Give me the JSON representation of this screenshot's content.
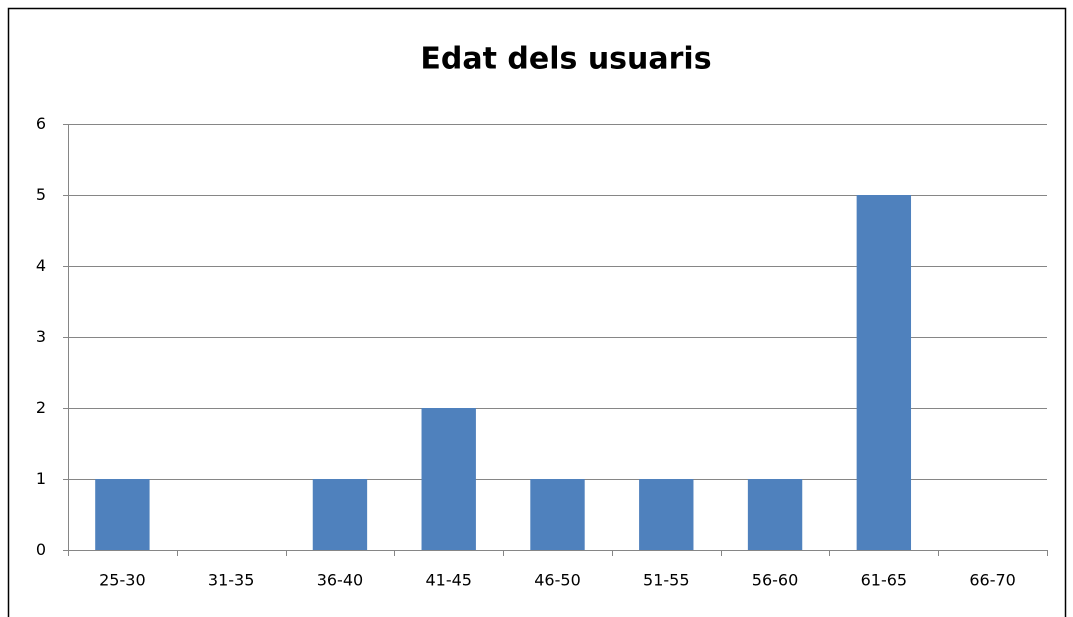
{
  "chart_data": {
    "type": "bar",
    "title": "Edat dels usuaris",
    "categories": [
      "25-30",
      "31-35",
      "36-40",
      "41-45",
      "46-50",
      "51-55",
      "56-60",
      "61-65",
      "66-70"
    ],
    "values": [
      1,
      0,
      1,
      2,
      1,
      1,
      1,
      5,
      0
    ],
    "color": "#4f81bd",
    "ylim": [
      0,
      6
    ],
    "yticks": [
      0,
      1,
      2,
      3,
      4,
      5,
      6
    ],
    "grid": true
  }
}
